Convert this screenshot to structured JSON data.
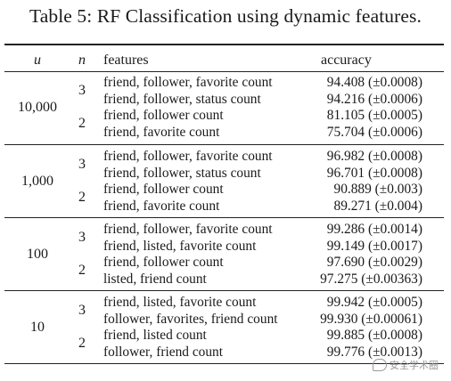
{
  "caption": "Table 5: RF Classification using dynamic features.",
  "headers": {
    "u": "u",
    "n": "n",
    "features": "features",
    "accuracy": "accuracy"
  },
  "groups": [
    {
      "u": "10,000",
      "rows": [
        {
          "n": "3",
          "features": "friend, follower, favorite count",
          "accuracy": "94.408 (±0.0008)"
        },
        {
          "n": "",
          "features": "friend, follower, status count",
          "accuracy": "94.216 (±0.0006)"
        },
        {
          "n": "2",
          "features": "friend, follower count",
          "accuracy": "81.105 (±0.0005)"
        },
        {
          "n": "",
          "features": "friend, favorite count",
          "accuracy": "75.704 (±0.0006)"
        }
      ]
    },
    {
      "u": "1,000",
      "rows": [
        {
          "n": "3",
          "features": "friend, follower, favorite count",
          "accuracy": "96.982 (±0.0008)"
        },
        {
          "n": "",
          "features": "friend, follower, status count",
          "accuracy": "96.701 (±0.0008)"
        },
        {
          "n": "2",
          "features": "friend, follower count",
          "accuracy": "90.889 (±0.003)"
        },
        {
          "n": "",
          "features": "friend, favorite count",
          "accuracy": "89.271 (±0.004)"
        }
      ]
    },
    {
      "u": "100",
      "rows": [
        {
          "n": "3",
          "features": "friend, follower, favorite count",
          "accuracy": "99.286 (±0.0014)"
        },
        {
          "n": "",
          "features": "friend, listed, favorite count",
          "accuracy": "99.149 (±0.0017)"
        },
        {
          "n": "2",
          "features": "friend, follower count",
          "accuracy": "97.690 (±0.0029)"
        },
        {
          "n": "",
          "features": "listed, friend count",
          "accuracy": "97.275 (±0.00363)"
        }
      ]
    },
    {
      "u": "10",
      "rows": [
        {
          "n": "3",
          "features": "friend, listed, favorite count",
          "accuracy": "99.942 (±0.0005)"
        },
        {
          "n": "",
          "features": "follower, favorites, friend count",
          "accuracy": "99.930 (±0.00061)"
        },
        {
          "n": "2",
          "features": "friend, listed count",
          "accuracy": "99.885 (±0.0008)"
        },
        {
          "n": "",
          "features": "follower, friend count",
          "accuracy": "99.776 (±0.0013)"
        }
      ]
    }
  ],
  "watermark": "安全学术圈"
}
